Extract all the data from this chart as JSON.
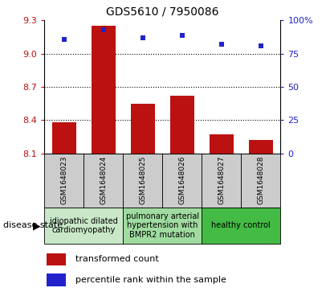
{
  "title": "GDS5610 / 7950086",
  "samples": [
    "GSM1648023",
    "GSM1648024",
    "GSM1648025",
    "GSM1648026",
    "GSM1648027",
    "GSM1648028"
  ],
  "bar_values": [
    8.38,
    9.25,
    8.55,
    8.62,
    8.27,
    8.22
  ],
  "scatter_values": [
    86,
    93,
    87,
    89,
    82,
    81
  ],
  "ylim_left": [
    8.1,
    9.3
  ],
  "ylim_right": [
    0,
    100
  ],
  "yticks_left": [
    8.1,
    8.4,
    8.7,
    9.0,
    9.3
  ],
  "yticks_right": [
    0,
    25,
    50,
    75,
    100
  ],
  "ytick_right_labels": [
    "0",
    "25",
    "50",
    "75",
    "100%"
  ],
  "grid_lines": [
    9.0,
    8.7,
    8.4
  ],
  "bar_color": "#bb1111",
  "scatter_color": "#2222cc",
  "disease_groups": [
    {
      "label": "idiopathic dilated\ncardiomyopathy",
      "col_indices": [
        0,
        1
      ],
      "color": "#c8e8c8"
    },
    {
      "label": "pulmonary arterial\nhypertension with\nBMPR2 mutation",
      "col_indices": [
        2,
        3
      ],
      "color": "#a0dca0"
    },
    {
      "label": "healthy control",
      "col_indices": [
        4,
        5
      ],
      "color": "#44bb44"
    }
  ],
  "sample_box_color": "#cccccc",
  "legend_bar_label": "transformed count",
  "legend_scatter_label": "percentile rank within the sample",
  "disease_state_label": "disease state",
  "title_fontsize": 10,
  "tick_fontsize": 8,
  "sample_fontsize": 6.5,
  "group_fontsize": 7,
  "legend_fontsize": 8
}
